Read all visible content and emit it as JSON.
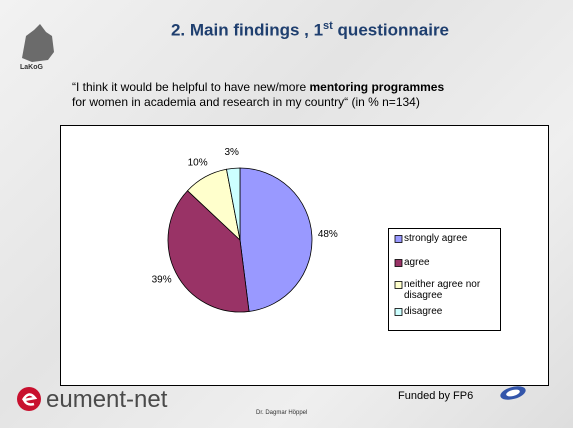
{
  "logo_text": "LaKoG",
  "title": {
    "main": "2. Main findings , 1",
    "sup": "st",
    "rest": " questionnaire"
  },
  "question": {
    "start": "“I think it would be helpful to have new/more ",
    "bold": "mentoring programmes",
    "end": "for women in academia and research in my country“ (in %  n=134)"
  },
  "footer": {
    "brand": "eument-net",
    "funding": "Funded by FP6",
    "author": "Dr. Dagmar Höppel"
  },
  "chart_data": {
    "type": "pie",
    "categories": [
      "strongly agree",
      "agree",
      "neither agree nor disagree",
      "disagree"
    ],
    "values": [
      48,
      39,
      10,
      3
    ],
    "value_labels": [
      "48%",
      "39%",
      "10%",
      "3%"
    ],
    "colors": [
      "#9999ff",
      "#993366",
      "#ffffcc",
      "#ccffff"
    ],
    "legend": "right"
  }
}
